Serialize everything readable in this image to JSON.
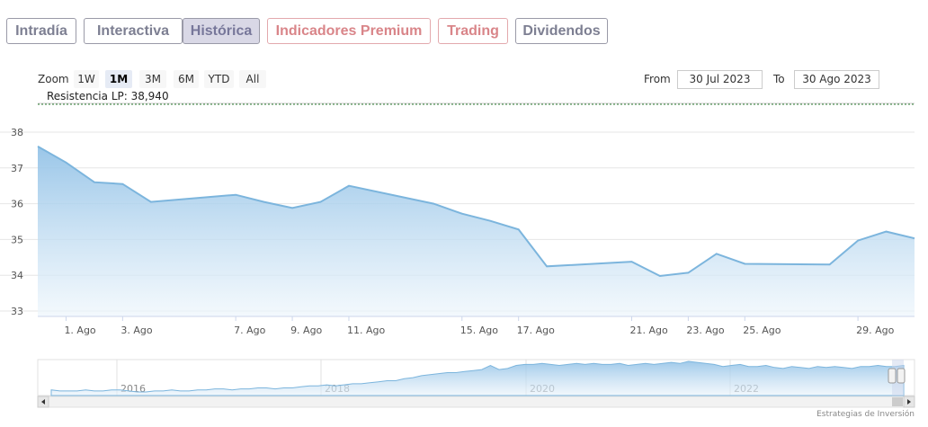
{
  "tabs": [
    {
      "label": "Intradía",
      "active": false,
      "premium": false
    },
    {
      "label": "Interactiva",
      "active": false,
      "premium": false
    },
    {
      "label": "Histórica",
      "active": true,
      "premium": false
    },
    {
      "label": "Indicadores Premium",
      "active": false,
      "premium": true
    },
    {
      "label": "Trading",
      "active": false,
      "premium": true
    },
    {
      "label": "Dividendos",
      "active": false,
      "premium": false
    }
  ],
  "range_selector": {
    "zoom_label": "Zoom",
    "buttons": [
      "1W",
      "1M",
      "3M",
      "6M",
      "YTD",
      "All"
    ],
    "selected": "1M",
    "from_label": "From",
    "from_value": "30 Jul 2023",
    "to_label": "To",
    "to_value": "30 Ago 2023"
  },
  "resistance": {
    "label": "Resistencia LP: 38,940",
    "value": 38.94,
    "color": "#2e7d32"
  },
  "colors": {
    "line": "#7cb5dd",
    "area_top": "#8fc0e6",
    "area_bottom": "#eef6fc",
    "grid": "#e6e6e6"
  },
  "credit": "Estrategias de Inversión",
  "chart_data": {
    "type": "area",
    "title": "",
    "xlabel": "",
    "ylabel": "",
    "ylim": [
      33,
      38
    ],
    "y_ticks": [
      33,
      34,
      35,
      36,
      37,
      38
    ],
    "x_tick_labels": [
      {
        "date": "2023-08-01",
        "label": "1. Ago"
      },
      {
        "date": "2023-08-03",
        "label": "3. Ago"
      },
      {
        "date": "2023-08-07",
        "label": "7. Ago"
      },
      {
        "date": "2023-08-09",
        "label": "9. Ago"
      },
      {
        "date": "2023-08-11",
        "label": "11. Ago"
      },
      {
        "date": "2023-08-15",
        "label": "15. Ago"
      },
      {
        "date": "2023-08-17",
        "label": "17. Ago"
      },
      {
        "date": "2023-08-21",
        "label": "21. Ago"
      },
      {
        "date": "2023-08-23",
        "label": "23. Ago"
      },
      {
        "date": "2023-08-25",
        "label": "25. Ago"
      },
      {
        "date": "2023-08-29",
        "label": "29. Ago"
      }
    ],
    "x_range": [
      "2023-07-31",
      "2023-08-31"
    ],
    "series": [
      {
        "points": [
          [
            "2023-07-31",
            37.6
          ],
          [
            "2023-08-01",
            37.15
          ],
          [
            "2023-08-02",
            36.6
          ],
          [
            "2023-08-03",
            36.55
          ],
          [
            "2023-08-04",
            36.05
          ],
          [
            "2023-08-07",
            36.25
          ],
          [
            "2023-08-08",
            36.05
          ],
          [
            "2023-08-09",
            35.88
          ],
          [
            "2023-08-10",
            36.05
          ],
          [
            "2023-08-11",
            36.5
          ],
          [
            "2023-08-14",
            36.0
          ],
          [
            "2023-08-15",
            35.72
          ],
          [
            "2023-08-16",
            35.52
          ],
          [
            "2023-08-17",
            35.28
          ],
          [
            "2023-08-18",
            34.25
          ],
          [
            "2023-08-21",
            34.38
          ],
          [
            "2023-08-22",
            33.98
          ],
          [
            "2023-08-23",
            34.07
          ],
          [
            "2023-08-24",
            34.6
          ],
          [
            "2023-08-25",
            34.32
          ],
          [
            "2023-08-28",
            34.3
          ],
          [
            "2023-08-29",
            34.97
          ],
          [
            "2023-08-30",
            35.22
          ],
          [
            "2023-08-31",
            35.03
          ]
        ]
      }
    ],
    "navigator": {
      "year_labels": [
        "2016",
        "2018",
        "2020",
        "2022"
      ],
      "values": [
        32,
        31,
        31,
        31,
        32,
        31,
        31,
        32,
        32,
        31,
        30,
        30,
        31,
        31,
        32,
        31,
        31,
        32,
        32,
        33,
        33,
        32,
        33,
        33,
        34,
        34,
        33,
        34,
        34,
        35,
        36,
        36,
        37,
        36,
        37,
        38,
        38,
        39,
        40,
        41,
        41,
        43,
        44,
        46,
        47,
        48,
        49,
        49,
        50,
        51,
        52,
        56,
        52,
        53,
        56,
        57,
        57,
        58,
        57,
        56,
        57,
        58,
        57,
        58,
        57,
        57,
        58,
        56,
        57,
        58,
        57,
        58,
        59,
        58,
        60,
        59,
        58,
        57,
        55,
        56,
        57,
        55,
        55,
        56,
        54,
        53,
        55,
        54,
        53,
        55,
        54,
        55,
        54,
        53,
        55,
        55,
        56,
        55,
        55,
        56
      ]
    }
  }
}
